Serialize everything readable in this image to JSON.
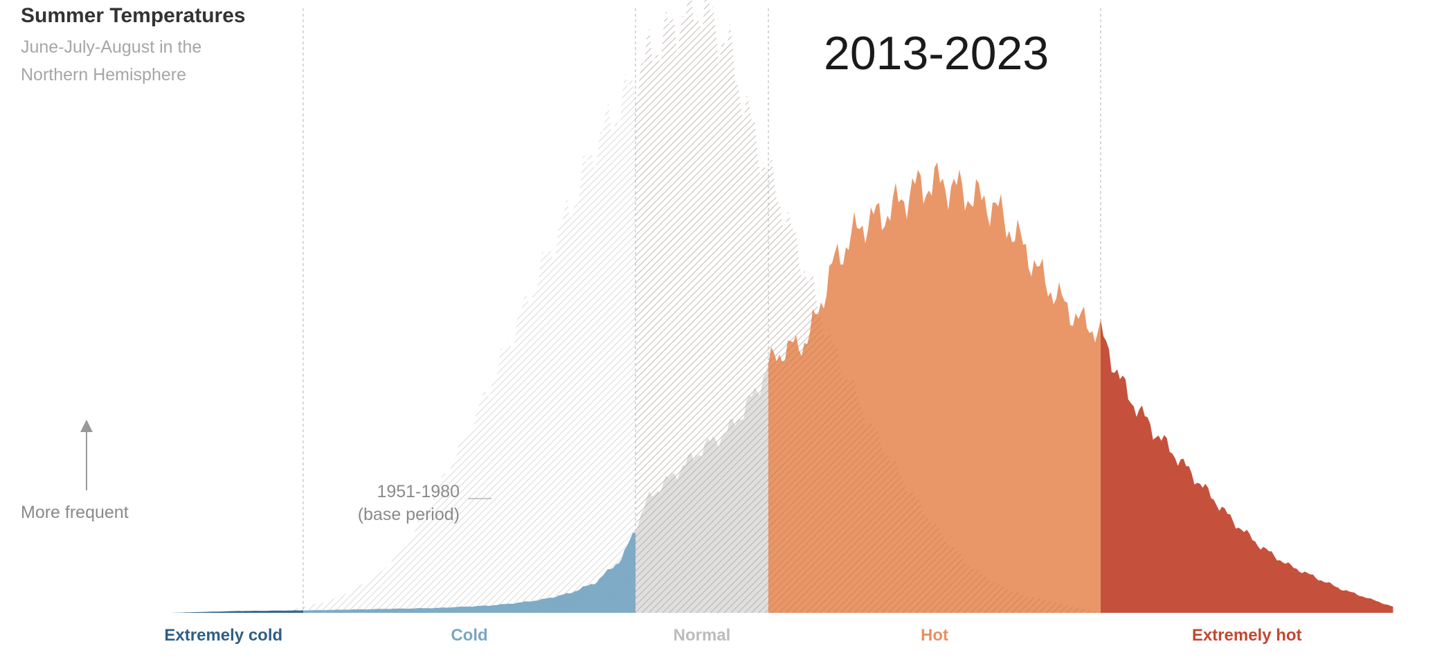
{
  "title": "Summer Temperatures",
  "subtitle": "June-July-August in the Northern Hemisphere",
  "period_label": "2013-2023",
  "axis_hint": "More frequent",
  "base_period": {
    "line1": "1951-1980",
    "line2": "(base period)"
  },
  "colors": {
    "extremely_cold": "#2e5f86",
    "cold": "#79a6c3",
    "normal": "#c4c4c4",
    "hot": "#e89160",
    "extremely_hot": "#c24832",
    "base_hatch": "#d4d4d4",
    "text": "#333333"
  },
  "chart_data": {
    "type": "area",
    "title": "Summer Temperatures",
    "subtitle": "June-July-August in the Northern Hemisphere",
    "xlabel": "",
    "ylabel": "More frequent",
    "grid": false,
    "xlim": [
      -4.5,
      5.5
    ],
    "ylim": [
      0,
      1
    ],
    "boundaries": [
      -3,
      -0.5,
      0.5,
      3
    ],
    "categories": [
      {
        "label": "Extremely cold",
        "color": "#2e5f86"
      },
      {
        "label": "Cold",
        "color": "#79a6c3"
      },
      {
        "label": "Normal",
        "color": "#c4c4c4"
      },
      {
        "label": "Hot",
        "color": "#e89160"
      },
      {
        "label": "Extremely hot",
        "color": "#c24832"
      }
    ],
    "series": [
      {
        "name": "1951-1980",
        "style": "hatched",
        "x": [
          -3.2,
          -3.0,
          -2.8,
          -2.6,
          -2.4,
          -2.2,
          -2.0,
          -1.8,
          -1.6,
          -1.4,
          -1.2,
          -1.0,
          -0.8,
          -0.6,
          -0.4,
          -0.2,
          0.0,
          0.2,
          0.4,
          0.6,
          0.8,
          1.0,
          1.2,
          1.4,
          1.6,
          1.8,
          2.0,
          2.2,
          2.4,
          2.6,
          2.8,
          3.0
        ],
        "values": [
          0.0,
          0.01,
          0.02,
          0.04,
          0.07,
          0.12,
          0.2,
          0.28,
          0.37,
          0.47,
          0.57,
          0.66,
          0.77,
          0.84,
          0.92,
          0.97,
          1.0,
          0.93,
          0.78,
          0.67,
          0.55,
          0.43,
          0.34,
          0.26,
          0.19,
          0.13,
          0.08,
          0.05,
          0.03,
          0.02,
          0.01,
          0.0
        ]
      },
      {
        "name": "2013-2023",
        "style": "filled",
        "x": [
          -4.0,
          -3.5,
          -3.0,
          -2.5,
          -2.0,
          -1.8,
          -1.6,
          -1.4,
          -1.2,
          -1.0,
          -0.8,
          -0.6,
          -0.5,
          -0.4,
          -0.2,
          0.0,
          0.2,
          0.4,
          0.5,
          0.6,
          0.8,
          1.0,
          1.2,
          1.4,
          1.6,
          1.8,
          2.0,
          2.2,
          2.4,
          2.6,
          2.8,
          3.0,
          3.2,
          3.4,
          3.6,
          3.8,
          4.0,
          4.2,
          4.4,
          4.6,
          4.8,
          5.0,
          5.2
        ],
        "values": [
          0.0,
          0.003,
          0.004,
          0.006,
          0.008,
          0.01,
          0.012,
          0.016,
          0.022,
          0.032,
          0.05,
          0.09,
          0.14,
          0.19,
          0.23,
          0.27,
          0.3,
          0.36,
          0.41,
          0.43,
          0.45,
          0.58,
          0.64,
          0.66,
          0.7,
          0.71,
          0.69,
          0.67,
          0.61,
          0.54,
          0.49,
          0.46,
          0.36,
          0.3,
          0.25,
          0.2,
          0.15,
          0.11,
          0.08,
          0.06,
          0.04,
          0.025,
          0.01
        ]
      }
    ]
  }
}
